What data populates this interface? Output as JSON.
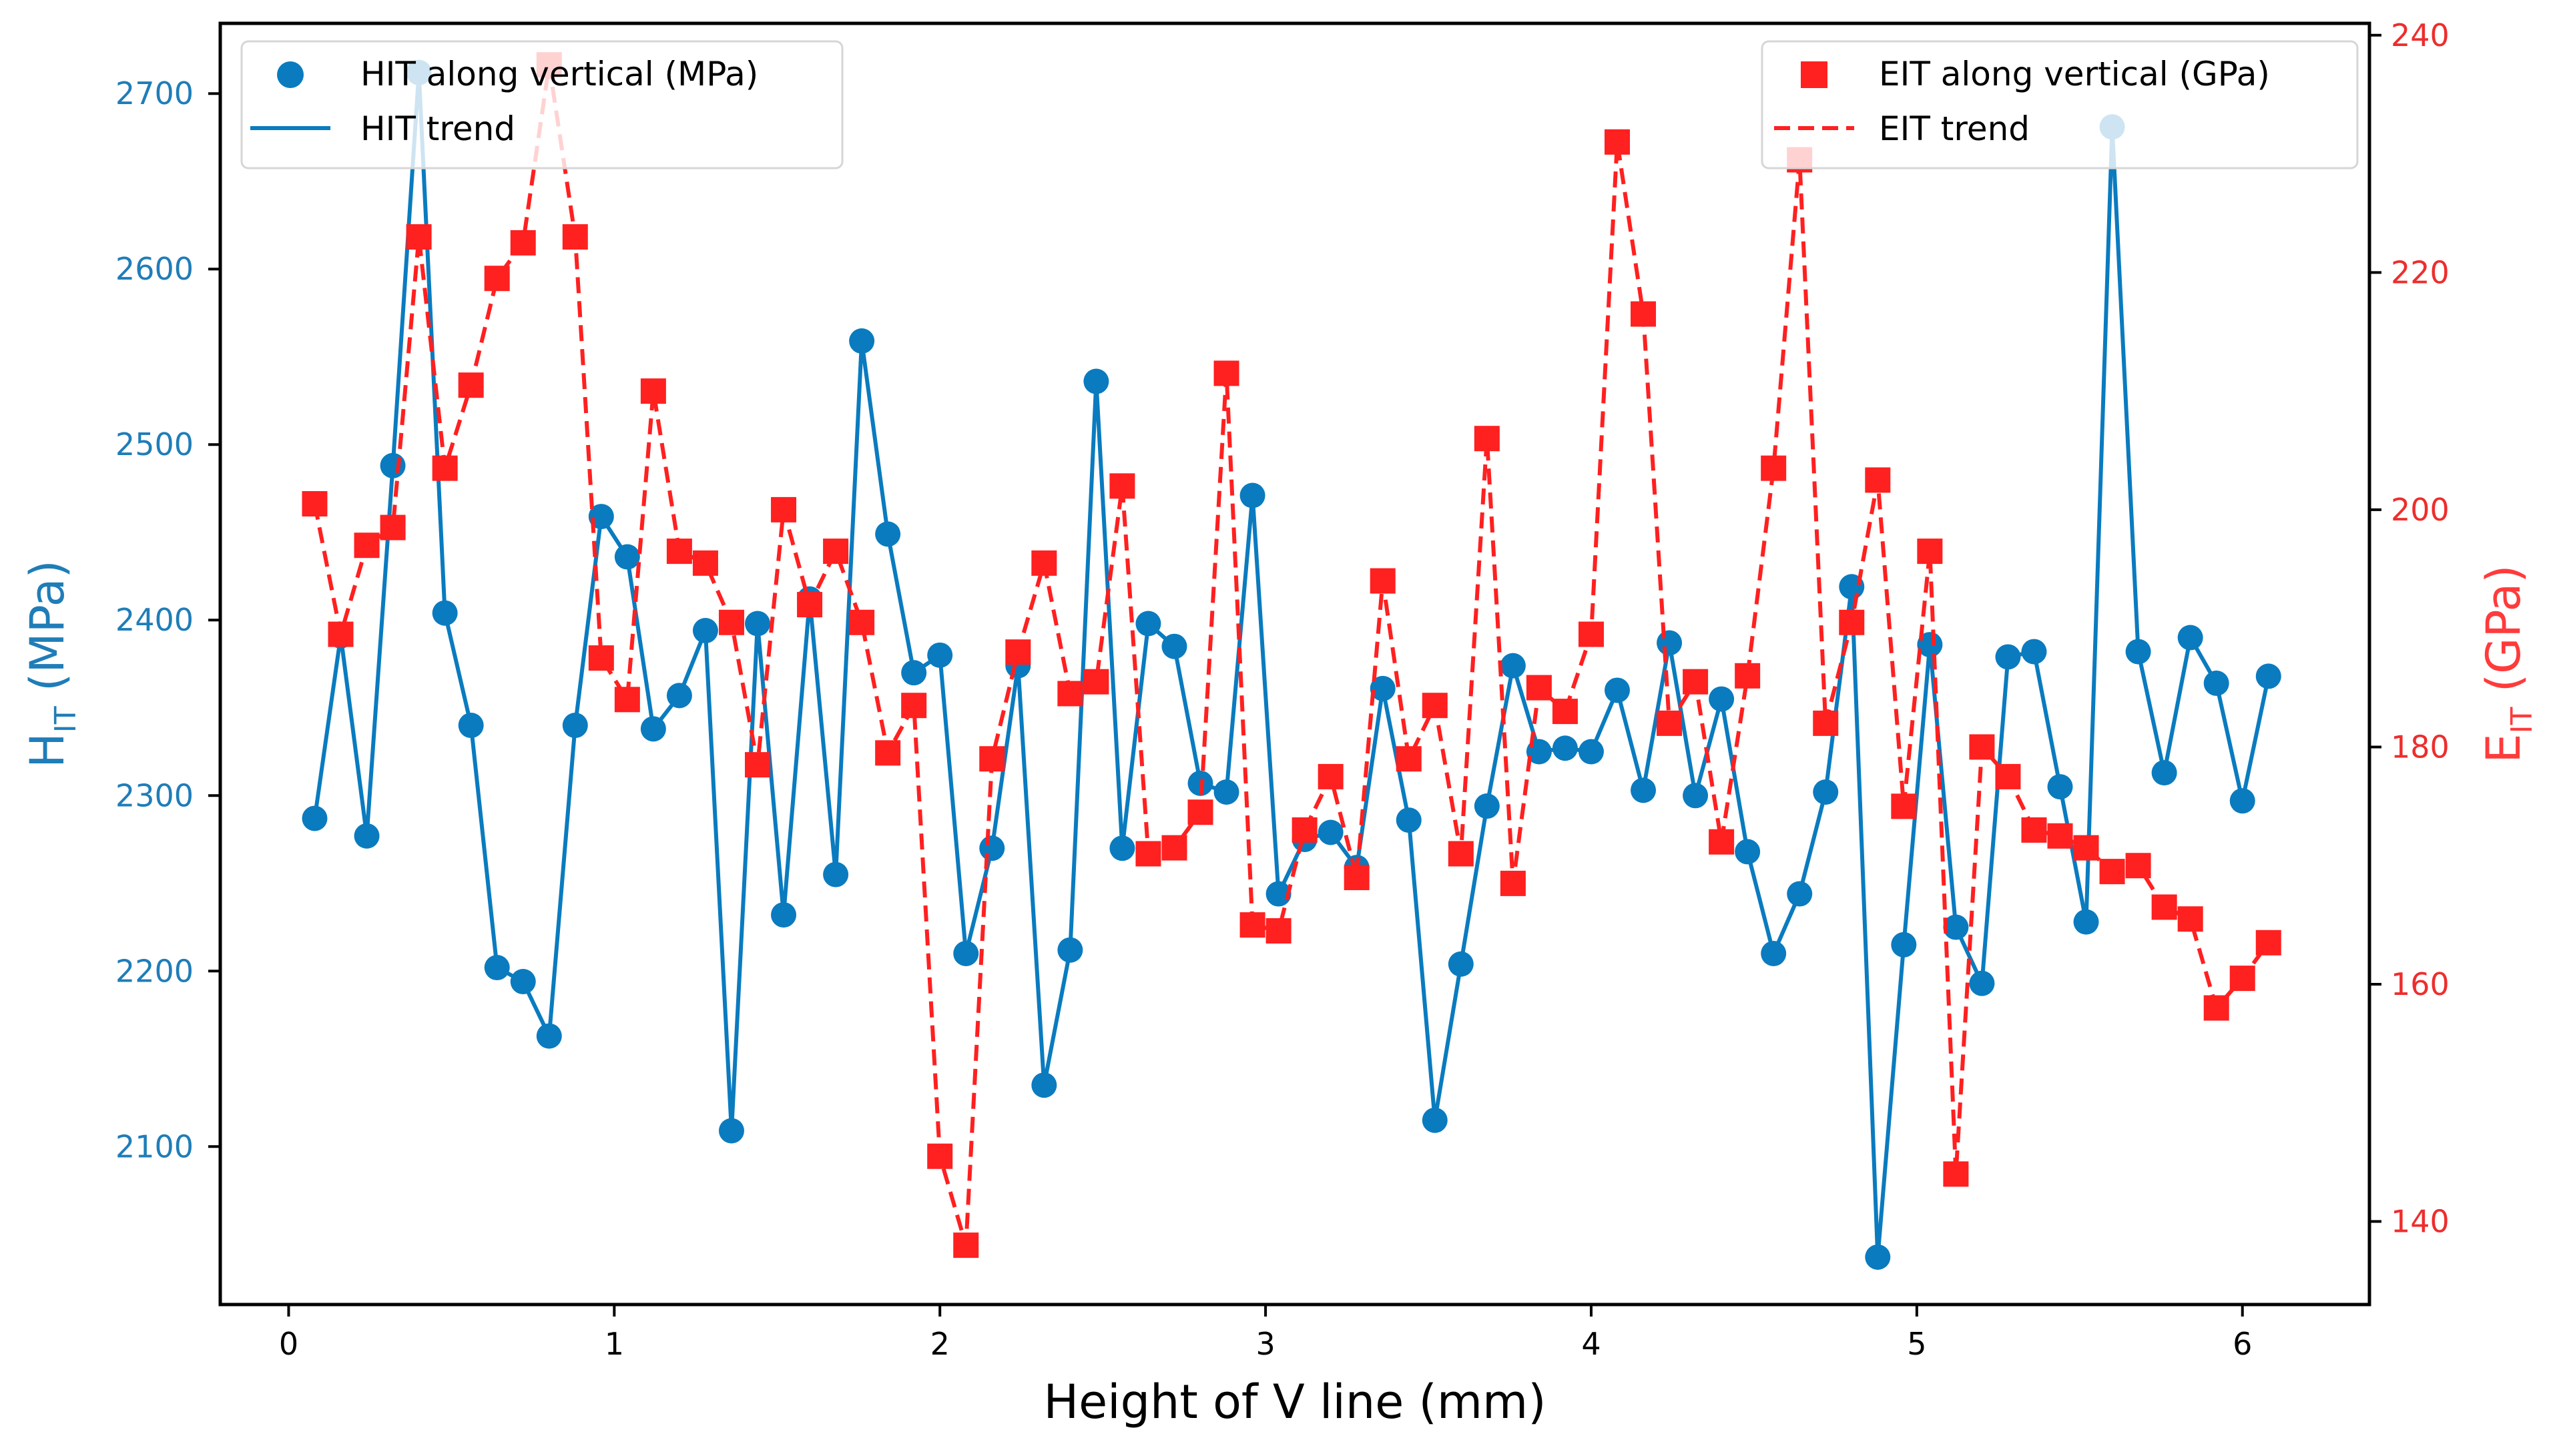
{
  "chart_data": {
    "type": "line",
    "xlabel": "Height of V line (mm)",
    "ylabel_left": {
      "main": "H",
      "sub": "IT",
      "unit": " (MPa)"
    },
    "ylabel_right": {
      "main": "E",
      "sub": "IT",
      "unit": " (GPa)"
    },
    "xlim": [
      -0.21,
      6.39
    ],
    "ylim_left": [
      2010,
      2740
    ],
    "ylim_right": [
      133,
      241
    ],
    "x_ticks": [
      0,
      1,
      2,
      3,
      4,
      5,
      6
    ],
    "left_ticks": [
      2100,
      2200,
      2300,
      2400,
      2500,
      2600,
      2700
    ],
    "right_ticks": [
      140,
      160,
      180,
      200,
      220,
      240
    ],
    "grid": false,
    "colors": {
      "hit": "#0a7bbf",
      "eit": "#ff2020",
      "axis": "#000000",
      "left_ticks": "#1f7db8",
      "right_ticks": "#ee2d2d"
    },
    "legend_left": {
      "placement": "top-left",
      "entries": [
        "HIT along vertical (MPa)",
        "HIT trend"
      ]
    },
    "legend_right": {
      "placement": "top-right",
      "entries": [
        "EIT along vertical (GPa)",
        "EIT trend"
      ]
    },
    "x": [
      0.08,
      0.16,
      0.24,
      0.32,
      0.4,
      0.48,
      0.56,
      0.64,
      0.72,
      0.8,
      0.88,
      0.96,
      1.04,
      1.12,
      1.2,
      1.28,
      1.36,
      1.44,
      1.52,
      1.6,
      1.68,
      1.76,
      1.84,
      1.92,
      2.0,
      2.08,
      2.16,
      2.24,
      2.32,
      2.4,
      2.48,
      2.56,
      2.64,
      2.72,
      2.8,
      2.88,
      2.96,
      3.04,
      3.12,
      3.2,
      3.28,
      3.36,
      3.44,
      3.52,
      3.6,
      3.68,
      3.76,
      3.84,
      3.92,
      4.0,
      4.08,
      4.16,
      4.24,
      4.32,
      4.4,
      4.48,
      4.56,
      4.64,
      4.72,
      4.8,
      4.88,
      4.96,
      5.04,
      5.12,
      5.2,
      5.28,
      5.36,
      5.44,
      5.52,
      5.6,
      5.68,
      5.76,
      5.84,
      5.92,
      6.0,
      6.08
    ],
    "series": [
      {
        "name": "HIT along vertical (MPa)",
        "axis": "left",
        "marker": "circle",
        "trend_name": "HIT trend",
        "values": [
          2287,
          2391,
          2277,
          2488,
          2712,
          2404,
          2340,
          2202,
          2194,
          2163,
          2340,
          2459,
          2436,
          2338,
          2357,
          2394,
          2109,
          2398,
          2232,
          2412,
          2255,
          2559,
          2449,
          2370,
          2380,
          2210,
          2270,
          2374,
          2135,
          2212,
          2536,
          2270,
          2398,
          2385,
          2307,
          2302,
          2471,
          2244,
          2275,
          2279,
          2259,
          2361,
          2286,
          2115,
          2204,
          2294,
          2374,
          2325,
          2327,
          2325,
          2360,
          2303,
          2387,
          2300,
          2355,
          2268,
          2210,
          2244,
          2302,
          2419,
          2037,
          2215,
          2386,
          2225,
          2193,
          2379,
          2382,
          2305,
          2228,
          2681,
          2382,
          2313,
          2390,
          2364,
          2297,
          2368
        ]
      },
      {
        "name": "EIT along vertical (GPa)",
        "axis": "right",
        "marker": "square",
        "trend_name": "EIT trend",
        "values": [
          200.5,
          189.5,
          197.0,
          198.5,
          223.0,
          203.5,
          210.5,
          219.5,
          222.5,
          237.5,
          223.0,
          187.5,
          184.0,
          210.0,
          196.5,
          195.5,
          190.5,
          178.5,
          200.0,
          192.0,
          196.5,
          190.5,
          179.5,
          183.5,
          145.5,
          138.0,
          179.0,
          188.0,
          195.5,
          184.5,
          185.5,
          202.0,
          171.0,
          171.5,
          174.5,
          211.5,
          165.0,
          164.5,
          173.0,
          177.5,
          169.0,
          194.0,
          179.0,
          183.5,
          171.0,
          206.0,
          168.5,
          185.0,
          183.0,
          189.5,
          231.0,
          216.5,
          182.0,
          185.5,
          172.0,
          186.0,
          203.5,
          229.5,
          182.0,
          190.5,
          202.5,
          175.0,
          196.5,
          144.0,
          180.0,
          177.5,
          173.0,
          172.5,
          171.5,
          169.5,
          170.0,
          166.5,
          165.5,
          158.0,
          160.5,
          163.5
        ]
      }
    ]
  }
}
